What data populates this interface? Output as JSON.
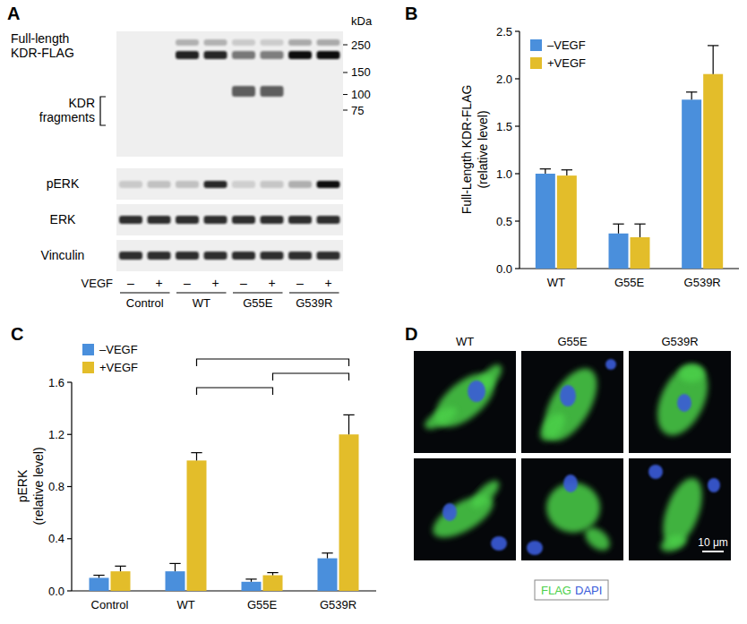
{
  "chart_data": [
    {
      "type": "bar",
      "title": "B",
      "y_label": [
        "Full-Length KDR-FLAG",
        "(relative level)"
      ],
      "categories": [
        "WT",
        "G55E",
        "G539R"
      ],
      "series": [
        {
          "name": "–VEGF",
          "color": "#4a8fdc",
          "values": [
            1.0,
            0.37,
            1.78
          ],
          "errors": [
            0.05,
            0.1,
            0.08
          ]
        },
        {
          "name": "+VEGF",
          "color": "#e3bd2a",
          "values": [
            0.98,
            0.33,
            2.05
          ],
          "errors": [
            0.06,
            0.14,
            0.3
          ]
        }
      ],
      "ylim": [
        0,
        2.5
      ],
      "yticks": [
        {
          "value": 0,
          "label": "0.0"
        },
        {
          "value": 0.5,
          "label": "0.5"
        },
        {
          "value": 1,
          "label": "1.0"
        },
        {
          "value": 1.5,
          "label": "1.5"
        },
        {
          "value": 2,
          "label": "2.0"
        },
        {
          "value": 2.5,
          "label": "2.5"
        }
      ],
      "legend": "top-left"
    },
    {
      "type": "bar",
      "title": "C",
      "y_label": [
        "pERK",
        "(relative level)"
      ],
      "categories": [
        "Control",
        "WT",
        "G55E",
        "G539R"
      ],
      "series": [
        {
          "name": "–VEGF",
          "color": "#4a8fdc",
          "values": [
            0.1,
            0.15,
            0.07,
            0.25
          ],
          "errors": [
            0.02,
            0.06,
            0.02,
            0.04
          ]
        },
        {
          "name": "+VEGF",
          "color": "#e3bd2a",
          "values": [
            0.15,
            1.0,
            0.12,
            1.2
          ],
          "errors": [
            0.04,
            0.06,
            0.02,
            0.15
          ]
        }
      ],
      "ylim": [
        0,
        1.6
      ],
      "yticks": [
        {
          "value": 0,
          "label": "0.0"
        },
        {
          "value": 0.4,
          "label": "0.4"
        },
        {
          "value": 0.8,
          "label": "0.8"
        },
        {
          "value": 1.2,
          "label": "1.2"
        },
        {
          "value": 1.6,
          "label": "1.6"
        }
      ],
      "legend": "top-left",
      "comparisons": [
        [
          "WT",
          "G55E"
        ],
        [
          "G55E",
          "G539R"
        ],
        [
          "WT",
          "G539R"
        ]
      ]
    }
  ],
  "blot": {
    "title": "A",
    "kda_label": "kDa",
    "markers": [
      250,
      150,
      100,
      75
    ],
    "full_length_label": [
      "Full-length",
      "KDR-FLAG"
    ],
    "fragments_label": [
      "KDR",
      "fragments"
    ],
    "strips": [
      "pERK",
      "ERK",
      "Vinculin"
    ],
    "treatment_label": "VEGF",
    "treatment_signs": [
      "–",
      "+"
    ],
    "lanes": [
      "Control",
      "WT",
      "G55E",
      "G539R"
    ]
  },
  "micrographs": {
    "title": "D",
    "columns": [
      "WT",
      "G55E",
      "G539R"
    ],
    "scale_bar": "10 μm",
    "stain_labels": [
      {
        "text": "FLAG",
        "color": "#4cd04a"
      },
      {
        "text": "DAPI",
        "color": "#3a5bd9"
      }
    ]
  }
}
